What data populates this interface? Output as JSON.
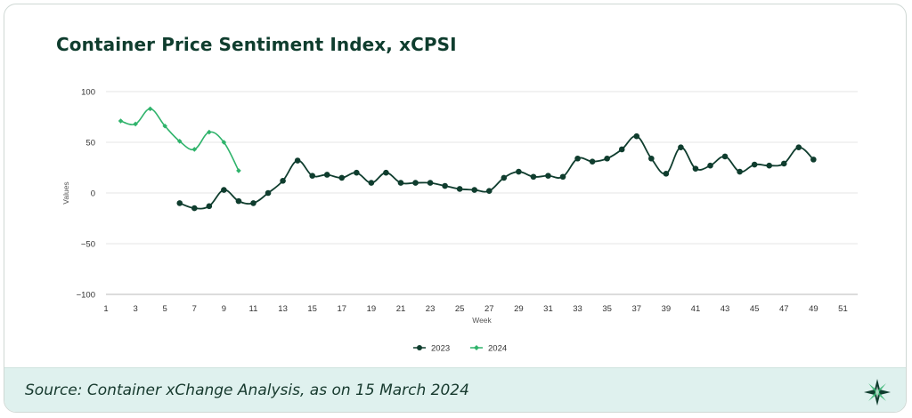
{
  "title": "Container Price Sentiment Index, xCPSI",
  "source": "Source: Container xChange Analysis, as on 15 March 2024",
  "chart_data": {
    "type": "line",
    "xlabel": "Week",
    "ylabel": "Values",
    "xlim": [
      1,
      52
    ],
    "ylim": [
      -100,
      100
    ],
    "xticks": [
      1,
      3,
      5,
      7,
      9,
      11,
      13,
      15,
      17,
      19,
      21,
      23,
      25,
      27,
      29,
      31,
      33,
      35,
      37,
      39,
      41,
      43,
      45,
      47,
      49,
      51
    ],
    "yticks": [
      100,
      50,
      0,
      -50,
      -100
    ],
    "grid": true,
    "legend": "bottom",
    "series": [
      {
        "name": "2023",
        "color": "#0f3d2e",
        "marker": "circle",
        "points": [
          [
            6,
            -10
          ],
          [
            7,
            -15
          ],
          [
            8,
            -13
          ],
          [
            9,
            3
          ],
          [
            10,
            -8
          ],
          [
            11,
            -10
          ],
          [
            12,
            0
          ],
          [
            13,
            12
          ],
          [
            14,
            32
          ],
          [
            15,
            17
          ],
          [
            16,
            18
          ],
          [
            17,
            15
          ],
          [
            18,
            20
          ],
          [
            19,
            10
          ],
          [
            20,
            20
          ],
          [
            21,
            10
          ],
          [
            22,
            10
          ],
          [
            23,
            10
          ],
          [
            24,
            7
          ],
          [
            25,
            4
          ],
          [
            26,
            3
          ],
          [
            27,
            2
          ],
          [
            28,
            15
          ],
          [
            29,
            21
          ],
          [
            30,
            16
          ],
          [
            31,
            17
          ],
          [
            32,
            16
          ],
          [
            33,
            34
          ],
          [
            34,
            31
          ],
          [
            35,
            34
          ],
          [
            36,
            43
          ],
          [
            37,
            56
          ],
          [
            38,
            34
          ],
          [
            39,
            19
          ],
          [
            40,
            45
          ],
          [
            41,
            24
          ],
          [
            42,
            27
          ],
          [
            43,
            36
          ],
          [
            44,
            21
          ],
          [
            45,
            28
          ],
          [
            46,
            27
          ],
          [
            47,
            29
          ],
          [
            48,
            45
          ],
          [
            49,
            33
          ]
        ]
      },
      {
        "name": "2024",
        "color": "#2fb36b",
        "marker": "diamond",
        "points": [
          [
            2,
            71
          ],
          [
            3,
            68
          ],
          [
            4,
            83
          ],
          [
            5,
            66
          ],
          [
            6,
            51
          ],
          [
            7,
            43
          ],
          [
            8,
            60
          ],
          [
            9,
            50
          ],
          [
            10,
            22
          ]
        ]
      }
    ]
  },
  "logo": {
    "icon": "xchange-star-icon",
    "color": "#0f3d2e",
    "accent": "#2fb36b"
  }
}
